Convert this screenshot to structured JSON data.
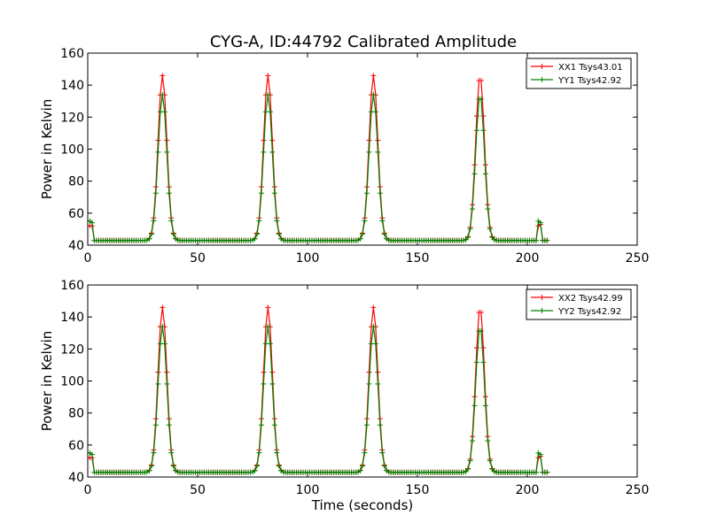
{
  "title": "CYG-A, ID:44792 Calibrated Amplitude",
  "colors": {
    "xx": "#ff0000",
    "yy": "#008000",
    "axes": "#000000",
    "background": "#ffffff"
  },
  "chart_data": [
    {
      "type": "line",
      "title": "CYG-A, ID:44792 Calibrated Amplitude",
      "xlabel": "",
      "ylabel": "Power in Kelvin",
      "xlim": [
        0,
        250
      ],
      "ylim": [
        40,
        160
      ],
      "xticks": [
        0,
        50,
        100,
        150,
        200,
        250
      ],
      "yticks": [
        40,
        60,
        80,
        100,
        120,
        140,
        160
      ],
      "grid": false,
      "legend": "top-right",
      "marker": "+",
      "sample_interval_s": 1,
      "baseline": {
        "xx": 43,
        "yy": 42.9
      },
      "series": [
        {
          "name": "XX1 Tsys43.01",
          "color": "#ff0000",
          "baseline": 43.0,
          "peaks": [
            {
              "x": 34,
              "y": 146,
              "sigma": 2.0
            },
            {
              "x": 82,
              "y": 146,
              "sigma": 2.0
            },
            {
              "x": 130,
              "y": 146,
              "sigma": 2.0
            },
            {
              "x": 178.5,
              "y": 146,
              "sigma": 2.0
            }
          ],
          "segments": [
            {
              "x": 0,
              "y": 52
            },
            {
              "x": 1,
              "y": 52
            },
            {
              "x": 2,
              "y": 52
            },
            {
              "x": 205,
              "y": 52
            },
            {
              "x": 206,
              "y": 53
            }
          ]
        },
        {
          "name": "YY1 Tsys42.92",
          "color": "#008000",
          "baseline": 42.9,
          "peaks": [
            {
              "x": 34,
              "y": 134,
              "sigma": 2.0
            },
            {
              "x": 82,
              "y": 134,
              "sigma": 2.0
            },
            {
              "x": 130,
              "y": 134,
              "sigma": 2.0
            },
            {
              "x": 178.5,
              "y": 134,
              "sigma": 2.0
            }
          ],
          "segments": [
            {
              "x": 0,
              "y": 55
            },
            {
              "x": 1,
              "y": 55
            },
            {
              "x": 2,
              "y": 54
            },
            {
              "x": 205,
              "y": 55
            },
            {
              "x": 206,
              "y": 54
            }
          ]
        }
      ],
      "x_range": [
        0,
        209
      ]
    },
    {
      "type": "line",
      "title": "",
      "xlabel": "Time (seconds)",
      "ylabel": "Power in Kelvin",
      "xlim": [
        0,
        250
      ],
      "ylim": [
        40,
        160
      ],
      "xticks": [
        0,
        50,
        100,
        150,
        200,
        250
      ],
      "yticks": [
        40,
        60,
        80,
        100,
        120,
        140,
        160
      ],
      "grid": false,
      "legend": "top-right",
      "marker": "+",
      "series": [
        {
          "name": "XX2 Tsys42.99",
          "color": "#ff0000",
          "baseline": 43.0,
          "peaks": [
            {
              "x": 34,
              "y": 146,
              "sigma": 2.0
            },
            {
              "x": 82,
              "y": 146,
              "sigma": 2.0
            },
            {
              "x": 130,
              "y": 146,
              "sigma": 2.0
            },
            {
              "x": 178.5,
              "y": 146,
              "sigma": 2.0
            }
          ],
          "segments": [
            {
              "x": 0,
              "y": 52
            },
            {
              "x": 1,
              "y": 52
            },
            {
              "x": 2,
              "y": 52
            },
            {
              "x": 205,
              "y": 52
            },
            {
              "x": 206,
              "y": 53
            }
          ]
        },
        {
          "name": "YY2 Tsys42.92",
          "color": "#008000",
          "baseline": 42.9,
          "peaks": [
            {
              "x": 34,
              "y": 134,
              "sigma": 2.0
            },
            {
              "x": 82,
              "y": 134,
              "sigma": 2.0
            },
            {
              "x": 130,
              "y": 134,
              "sigma": 2.0
            },
            {
              "x": 178.5,
              "y": 134,
              "sigma": 2.0
            }
          ],
          "segments": [
            {
              "x": 0,
              "y": 55
            },
            {
              "x": 1,
              "y": 55
            },
            {
              "x": 2,
              "y": 54
            },
            {
              "x": 205,
              "y": 55
            },
            {
              "x": 206,
              "y": 54
            }
          ]
        }
      ],
      "x_range": [
        0,
        209
      ]
    }
  ]
}
